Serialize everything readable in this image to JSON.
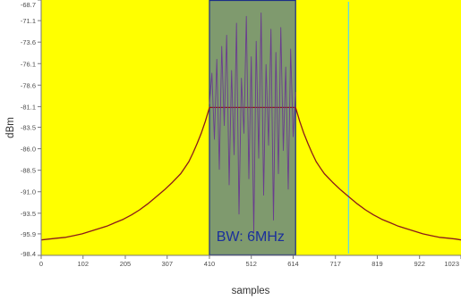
{
  "chart_data": {
    "type": "line",
    "title": "",
    "xlabel": "samples",
    "ylabel": "dBm",
    "xlim": [
      0,
      1023
    ],
    "ylim": [
      -98.4,
      -68.7
    ],
    "x_ticks": [
      0,
      102,
      205,
      307,
      410,
      512,
      614,
      717,
      819,
      922,
      1023
    ],
    "x_tick_labels": [
      "0",
      "102",
      "205",
      "307",
      "410",
      "512",
      "614",
      "717",
      "819",
      "922",
      "1023"
    ],
    "y_ticks": [
      -68.7,
      -71.1,
      -73.6,
      -76.1,
      -78.6,
      -81.1,
      -83.5,
      -86.0,
      -88.5,
      -91.0,
      -93.5,
      -95.9,
      -98.4
    ],
    "y_tick_labels": [
      "-68.7",
      "-71.1",
      "-73.6",
      "-76.1",
      "-78.6",
      "-81.1",
      "-83.5",
      "-86.0",
      "-88.5",
      "-91.0",
      "-93.5",
      "-95.9",
      "-98.4"
    ],
    "grid": false,
    "background_color": "#ffff00",
    "series": [
      {
        "color": "#8b1a1a",
        "points": [
          [
            0,
            -96.6
          ],
          [
            20,
            -96.5
          ],
          [
            40,
            -96.4
          ],
          [
            60,
            -96.3
          ],
          [
            80,
            -96.1
          ],
          [
            100,
            -95.9
          ],
          [
            120,
            -95.6
          ],
          [
            140,
            -95.3
          ],
          [
            160,
            -95.0
          ],
          [
            180,
            -94.6
          ],
          [
            200,
            -94.2
          ],
          [
            220,
            -93.7
          ],
          [
            240,
            -93.1
          ],
          [
            260,
            -92.4
          ],
          [
            280,
            -91.6
          ],
          [
            300,
            -90.8
          ],
          [
            320,
            -89.9
          ],
          [
            340,
            -88.9
          ],
          [
            350,
            -88.2
          ],
          [
            360,
            -87.5
          ],
          [
            370,
            -86.5
          ],
          [
            380,
            -85.4
          ],
          [
            390,
            -84.2
          ],
          [
            400,
            -82.8
          ],
          [
            410,
            -81.2
          ],
          [
            620,
            -81.2
          ],
          [
            630,
            -82.8
          ],
          [
            640,
            -84.2
          ],
          [
            650,
            -85.4
          ],
          [
            660,
            -86.5
          ],
          [
            670,
            -87.5
          ],
          [
            680,
            -88.2
          ],
          [
            690,
            -88.9
          ],
          [
            710,
            -89.9
          ],
          [
            730,
            -90.8
          ],
          [
            750,
            -91.6
          ],
          [
            770,
            -92.4
          ],
          [
            790,
            -93.1
          ],
          [
            810,
            -93.7
          ],
          [
            830,
            -94.2
          ],
          [
            850,
            -94.6
          ],
          [
            870,
            -95.0
          ],
          [
            890,
            -95.3
          ],
          [
            910,
            -95.6
          ],
          [
            930,
            -95.9
          ],
          [
            950,
            -96.1
          ],
          [
            970,
            -96.3
          ],
          [
            990,
            -96.4
          ],
          [
            1010,
            -96.5
          ],
          [
            1023,
            -96.6
          ]
        ]
      },
      {
        "color": "#6a3d8f",
        "points": [
          [
            410,
            -80.8
          ],
          [
            416,
            -77.2
          ],
          [
            422,
            -84.9
          ],
          [
            428,
            -75.6
          ],
          [
            434,
            -88.4
          ],
          [
            440,
            -74.1
          ],
          [
            446,
            -83.3
          ],
          [
            452,
            -72.8
          ],
          [
            458,
            -90.2
          ],
          [
            464,
            -76.9
          ],
          [
            470,
            -86.7
          ],
          [
            476,
            -71.4
          ],
          [
            482,
            -93.6
          ],
          [
            488,
            -77.8
          ],
          [
            494,
            -84.2
          ],
          [
            500,
            -70.6
          ],
          [
            506,
            -89.5
          ],
          [
            512,
            -75.3
          ],
          [
            518,
            -95.8
          ],
          [
            524,
            -73.5
          ],
          [
            530,
            -87.1
          ],
          [
            536,
            -70.2
          ],
          [
            542,
            -91.4
          ],
          [
            548,
            -76.2
          ],
          [
            554,
            -85.6
          ],
          [
            560,
            -72.1
          ],
          [
            566,
            -94.3
          ],
          [
            572,
            -74.8
          ],
          [
            578,
            -88.9
          ],
          [
            584,
            -71.9
          ],
          [
            590,
            -86.2
          ],
          [
            596,
            -76.5
          ],
          [
            602,
            -90.7
          ],
          [
            608,
            -74.4
          ],
          [
            614,
            -84.6
          ],
          [
            620,
            -79.4
          ]
        ]
      }
    ],
    "annotations": [
      {
        "type": "shaded-region",
        "x_start": 410,
        "x_end": 620,
        "fill_color": "#7f9a6e",
        "border_color": "#1c2f86"
      },
      {
        "type": "vertical-marker",
        "x": 749,
        "color": "#63d8e0"
      },
      {
        "type": "text",
        "text": "BW: 6MHz",
        "x": 510,
        "y": -96.2,
        "color": "#1a2f9c"
      }
    ]
  }
}
